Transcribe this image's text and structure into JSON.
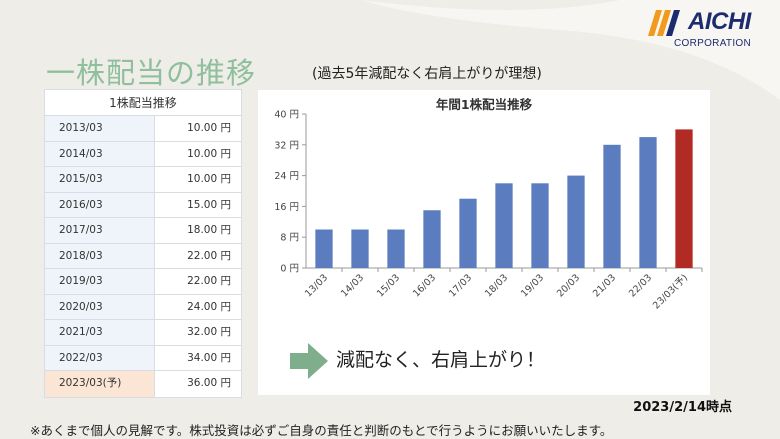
{
  "logo": {
    "name": "AICHI",
    "sub": "CORPORATION",
    "stripe_color": "#f29a1e",
    "text_color": "#1d2c6e"
  },
  "title": "一株配当の推移",
  "subtitle": "(過去5年減配なく右肩上がりが理想)",
  "table": {
    "header": "1株配当推移",
    "rows": [
      {
        "year": "2013/03",
        "value": "10.00 円"
      },
      {
        "year": "2014/03",
        "value": "10.00 円"
      },
      {
        "year": "2015/03",
        "value": "10.00 円"
      },
      {
        "year": "2016/03",
        "value": "15.00 円"
      },
      {
        "year": "2017/03",
        "value": "18.00 円"
      },
      {
        "year": "2018/03",
        "value": "22.00 円"
      },
      {
        "year": "2019/03",
        "value": "22.00 円"
      },
      {
        "year": "2020/03",
        "value": "24.00 円"
      },
      {
        "year": "2021/03",
        "value": "32.00 円"
      },
      {
        "year": "2022/03",
        "value": "34.00 円"
      },
      {
        "year": "2023/03(予)",
        "value": "36.00 円"
      }
    ]
  },
  "chart_data": {
    "type": "bar",
    "title": "年間1株配当推移",
    "categories": [
      "13/03",
      "14/03",
      "15/03",
      "16/03",
      "17/03",
      "18/03",
      "19/03",
      "20/03",
      "21/03",
      "22/03",
      "23/03(予)"
    ],
    "values": [
      10,
      10,
      10,
      15,
      18,
      22,
      22,
      24,
      32,
      34,
      36
    ],
    "ylim": [
      0,
      40
    ],
    "yticks": [
      0,
      8,
      16,
      24,
      32,
      40
    ],
    "ytick_labels": [
      "0 円",
      "8 円",
      "16 円",
      "24 円",
      "32 円",
      "40 円"
    ],
    "bar_color": "#5b7dbf",
    "highlight_color": "#b22a24",
    "grid": false,
    "xlabel": "",
    "ylabel": ""
  },
  "callout": "減配なく、右肩上がり！",
  "as_of": "2023/2/14時点",
  "disclaimer": "※あくまで個人の見解です。株式投資は必ずご自身の責任と判断のもとで行うようにお願いいたします。",
  "colors": {
    "title": "#8fbf9c",
    "arrow": "#7fae8c",
    "background": "#efede8"
  }
}
